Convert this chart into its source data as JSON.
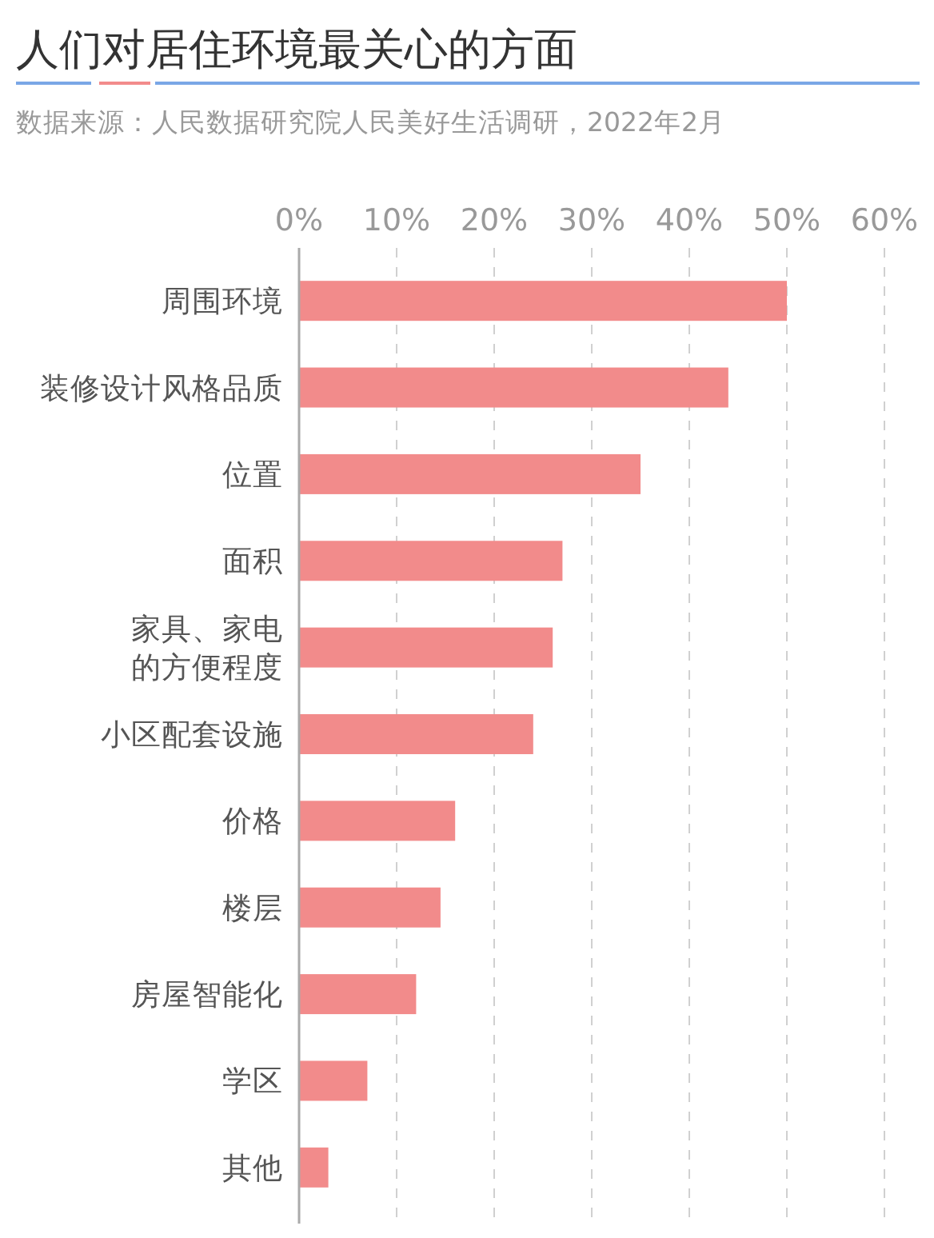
{
  "chart_data": {
    "type": "bar",
    "orientation": "horizontal",
    "title": "人们对居住环境最关心的方面",
    "subtitle": "数据来源：人民数据研究院人民美好生活调研，2022年2月",
    "categories": [
      "周围环境",
      "装修设计风格品质",
      "位置",
      "面积",
      "家具、家电的方便程度",
      "小区配套设施",
      "价格",
      "楼层",
      "房屋智能化",
      "学区",
      "其他"
    ],
    "values": [
      50,
      44,
      35,
      27,
      26,
      24,
      16,
      14.5,
      12,
      7,
      3
    ],
    "color": "#f28b8b",
    "xlim": [
      0,
      60
    ],
    "xticks": [
      {
        "value": 0,
        "label": "0%"
      },
      {
        "value": 10,
        "label": "10%"
      },
      {
        "value": 20,
        "label": "20%"
      },
      {
        "value": 30,
        "label": "30%"
      },
      {
        "value": 40,
        "label": "40%"
      },
      {
        "value": 50,
        "label": "50%"
      },
      {
        "value": 60,
        "label": "60%"
      }
    ],
    "grid": "x"
  }
}
